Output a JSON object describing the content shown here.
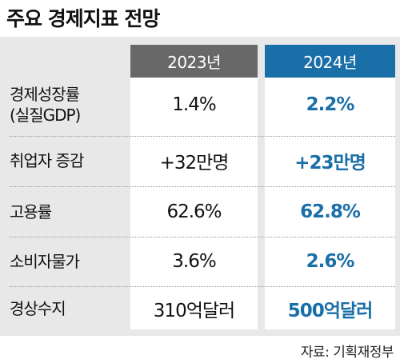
{
  "title": "주요 경제지표 전망",
  "headers": {
    "y2023": "2023년",
    "y2024": "2024년"
  },
  "rows": [
    {
      "label_line1": "경제성장률",
      "label_line2": "(실질GDP)",
      "v2023": "1.4%",
      "v2024": "2.2%"
    },
    {
      "label_line1": "취업자 증감",
      "label_line2": "",
      "v2023": "+32만명",
      "v2024": "+23만명"
    },
    {
      "label_line1": "고용률",
      "label_line2": "",
      "v2023": "62.6%",
      "v2024": "62.8%"
    },
    {
      "label_line1": "소비자물가",
      "label_line2": "",
      "v2023": "3.6%",
      "v2024": "2.6%"
    },
    {
      "label_line1": "경상수지",
      "label_line2": "",
      "v2023": "310억달러",
      "v2024": "500억달러"
    }
  ],
  "source": "자료: 기획재정부",
  "colors": {
    "accent": "#1a6fa8",
    "header_2023": "#686868",
    "panel": "#e8e8e8"
  }
}
